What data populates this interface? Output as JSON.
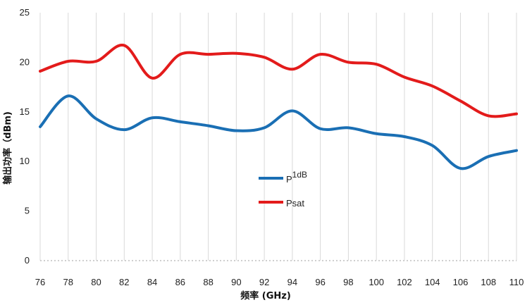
{
  "chart_data": {
    "type": "line",
    "xlabel": "频率 (GHz)",
    "ylabel": "输出功率（dBm)",
    "xlim": [
      76,
      110
    ],
    "ylim": [
      0,
      25
    ],
    "x_ticks": [
      "76",
      "78",
      "80",
      "82",
      "84",
      "86",
      "88",
      "90",
      "92",
      "94",
      "96",
      "98",
      "100",
      "102",
      "104",
      "106",
      "108",
      "110"
    ],
    "y_ticks": [
      "0",
      "5",
      "10",
      "15",
      "20",
      "25"
    ],
    "grid": "vertical",
    "legend_position": "center",
    "x": [
      76,
      78,
      80,
      82,
      84,
      86,
      88,
      90,
      92,
      94,
      96,
      98,
      100,
      102,
      104,
      106,
      108,
      110
    ],
    "series": [
      {
        "name": "P1dB",
        "name_main": "P",
        "name_sup": "1dB",
        "color": "#1a6fb4",
        "values": [
          13.5,
          16.6,
          14.3,
          13.2,
          14.4,
          14.0,
          13.6,
          13.1,
          13.4,
          15.1,
          13.3,
          13.4,
          12.8,
          12.5,
          11.6,
          9.3,
          10.5,
          11.1
        ]
      },
      {
        "name": "Psat",
        "name_main": "Psat",
        "name_sup": "",
        "color": "#e31b1b",
        "values": [
          19.1,
          20.1,
          20.1,
          21.7,
          18.4,
          20.8,
          20.8,
          20.9,
          20.5,
          19.3,
          20.8,
          20.0,
          19.8,
          18.5,
          17.6,
          16.1,
          14.6,
          14.8
        ]
      }
    ]
  }
}
